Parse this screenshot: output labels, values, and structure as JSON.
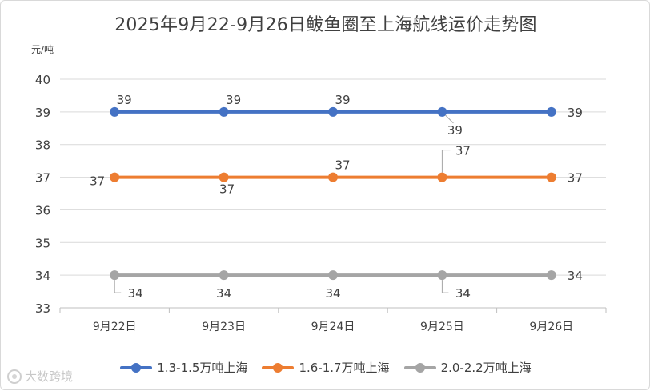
{
  "chart_data": {
    "type": "line",
    "title": "2025年9月22-9月26日鲅鱼圈至上海航线运价走势图",
    "ylabel": "元/吨",
    "xlabel": "",
    "categories": [
      "9月22日",
      "9月23日",
      "9月24日",
      "9月25日",
      "9月26日"
    ],
    "yticks": [
      "33",
      "34",
      "35",
      "36",
      "37",
      "38",
      "39",
      "40"
    ],
    "ylim": [
      33,
      40
    ],
    "grid": true,
    "legend_position": "bottom",
    "series": [
      {
        "name": "1.3-1.5万吨上海",
        "color": "#4472C4",
        "values": [
          39,
          39,
          39,
          39,
          39
        ],
        "value_labels": [
          "39",
          "39",
          "39",
          "39",
          "39"
        ],
        "label_pos": [
          "above",
          "above",
          "above",
          "below",
          "right"
        ]
      },
      {
        "name": "1.6-1.7万吨上海",
        "color": "#ED7D31",
        "values": [
          37,
          37,
          37,
          37,
          37
        ],
        "value_labels": [
          "37",
          "37",
          "37",
          "37",
          "37"
        ],
        "label_pos": [
          "left",
          "below",
          "above",
          "above",
          "right"
        ]
      },
      {
        "name": "2.0-2.2万吨上海",
        "color": "#A5A5A5",
        "values": [
          34,
          34,
          34,
          34,
          34
        ],
        "value_labels": [
          "34",
          "34",
          "34",
          "34",
          "34"
        ],
        "label_pos": [
          "below",
          "below",
          "below",
          "below",
          "right"
        ]
      }
    ]
  },
  "watermark": {
    "icon": "camera-logo-icon",
    "text": "大数跨境"
  }
}
